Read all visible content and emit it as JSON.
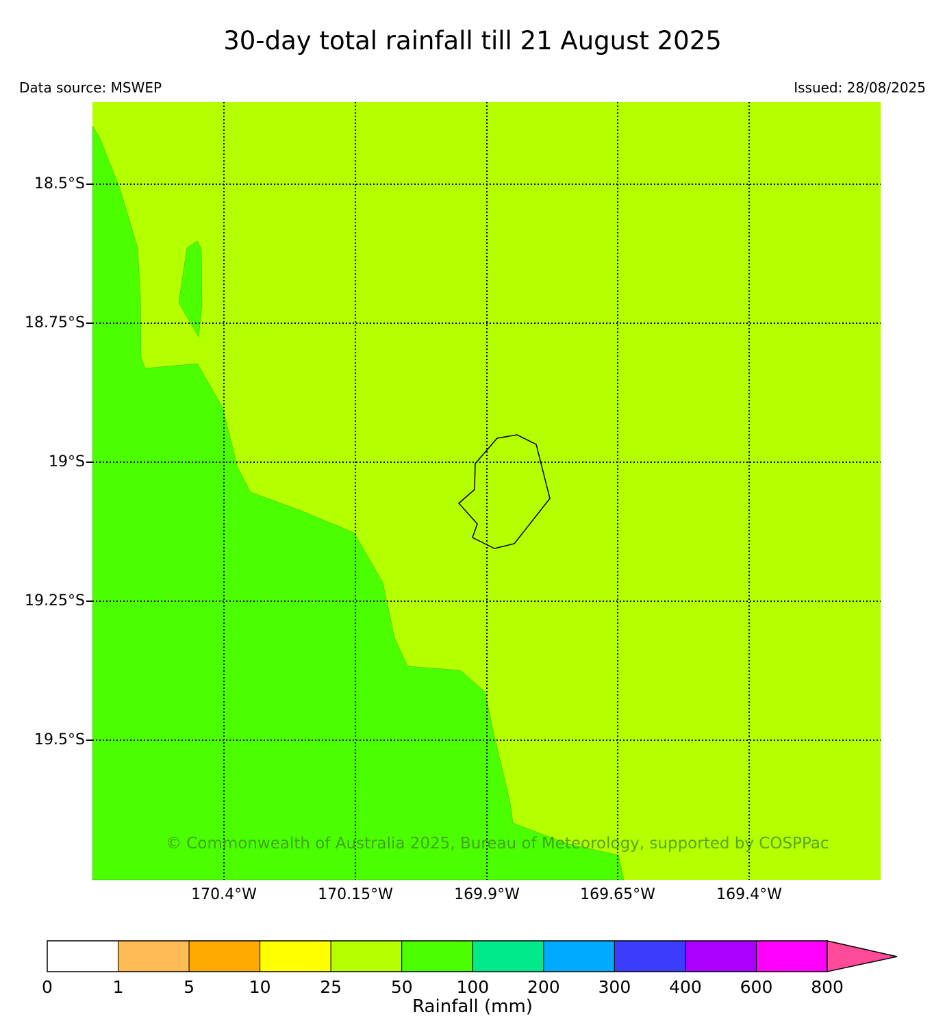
{
  "header": {
    "title": "30-day total rainfall till 21 August 2025",
    "source": "Data source: MSWEP",
    "issued": "Issued: 28/08/2025"
  },
  "map": {
    "region_colors": {
      "range_25_50": "#b4ff00",
      "range_50_100": "#4bff00"
    },
    "gridlines": "dotted",
    "lat_labels": [
      "18.5°S",
      "18.75°S",
      "19°S",
      "19.25°S",
      "19.5°S"
    ],
    "lon_labels": [
      "170.4°W",
      "170.15°W",
      "169.9°W",
      "169.65°W",
      "169.4°W"
    ],
    "island_outline": "Niue",
    "copyright": "© Commonwealth of Australia 2025, Bureau of Meteorology, supported by COSPPac"
  },
  "colorbar": {
    "label": "Rainfall (mm)",
    "ticks": [
      "0",
      "1",
      "5",
      "10",
      "25",
      "50",
      "100",
      "200",
      "300",
      "400",
      "600",
      "800"
    ],
    "colors": [
      "#ffffff",
      "#ffbb55",
      "#ffaa00",
      "#ffff00",
      "#b4ff00",
      "#4bff00",
      "#00ea8c",
      "#00aaff",
      "#3c3cff",
      "#aa00ff",
      "#ff00ff",
      "#ff4b9a"
    ],
    "extend": "max"
  }
}
